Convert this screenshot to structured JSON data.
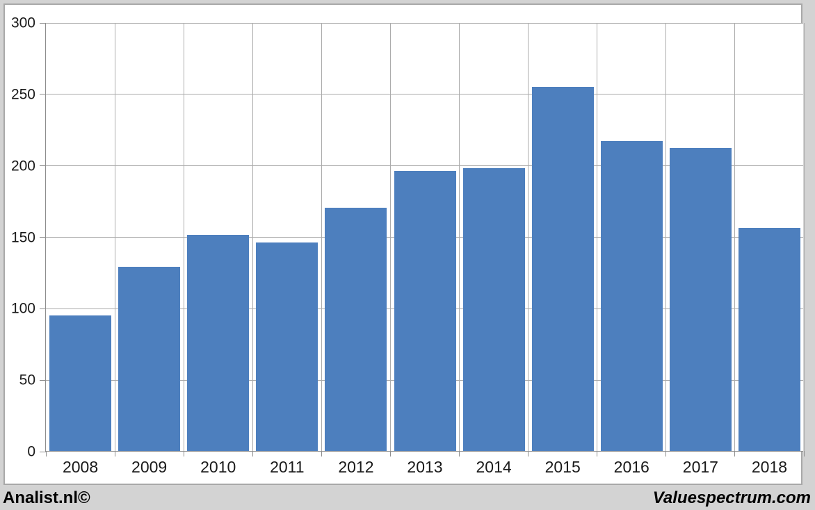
{
  "branding": {
    "left": "Analist.nl©",
    "right": "Valuespectrum.com"
  },
  "colors": {
    "bar": "#4d7fbe",
    "gridline": "#ababab",
    "axis": "#8e8e8e",
    "panel_border": "#a8a8a8",
    "background": "#d3d3d3",
    "plot_background": "#ffffff",
    "label": "#1a1a1a"
  },
  "chart_data": {
    "type": "bar",
    "title": "",
    "xlabel": "",
    "ylabel": "",
    "categories": [
      "2008",
      "2009",
      "2010",
      "2011",
      "2012",
      "2013",
      "2014",
      "2015",
      "2016",
      "2017",
      "2018"
    ],
    "values": [
      95,
      129,
      151,
      146,
      170,
      196,
      198,
      255,
      217,
      212,
      156
    ],
    "ylim": [
      0,
      300
    ],
    "y_ticks": [
      0,
      50,
      100,
      150,
      200,
      250,
      300
    ],
    "grid": true,
    "legend": false,
    "bar_color": "#4d7fbe"
  }
}
